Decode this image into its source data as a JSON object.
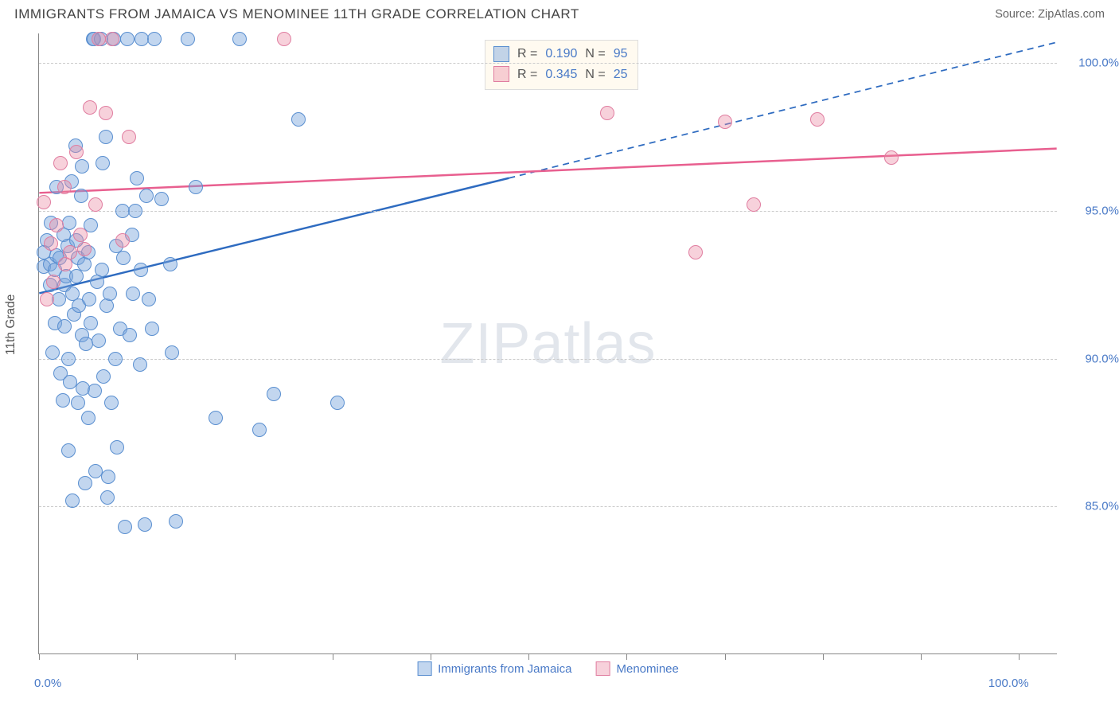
{
  "title": "IMMIGRANTS FROM JAMAICA VS MENOMINEE 11TH GRADE CORRELATION CHART",
  "source": "Source: ZipAtlas.com",
  "ylabel": "11th Grade",
  "watermark_zip": "ZIP",
  "watermark_atlas": "atlas",
  "chart": {
    "type": "scatter",
    "xlim": [
      0,
      104
    ],
    "ylim": [
      80,
      101
    ],
    "ytick_values": [
      85,
      90,
      95,
      100
    ],
    "ytick_labels": [
      "85.0%",
      "90.0%",
      "95.0%",
      "100.0%"
    ],
    "xtick_major": [
      0,
      100
    ],
    "xtick_labels": [
      "0.0%",
      "100.0%"
    ],
    "xtick_minor": [
      10,
      20,
      30,
      40,
      50,
      60,
      70,
      80,
      90
    ],
    "grid_color": "#cccccc",
    "axis_color": "#888888",
    "background_color": "#ffffff",
    "point_radius": 9,
    "series": [
      {
        "name": "Immigrants from Jamaica",
        "fill": "rgba(120,165,220,0.45)",
        "stroke": "#5a8fd0",
        "line_color": "#2e6bc0",
        "line_width": 2.5,
        "R": "0.190",
        "N": "95",
        "trend_solid": {
          "x1": 0,
          "y1": 92.2,
          "x2": 48,
          "y2": 96.1
        },
        "trend_dashed": {
          "x1": 48,
          "y1": 96.1,
          "x2": 104,
          "y2": 100.7
        },
        "points": [
          [
            0.5,
            93.6
          ],
          [
            0.5,
            93.1
          ],
          [
            0.8,
            94.0
          ],
          [
            1.1,
            93.2
          ],
          [
            1.2,
            94.6
          ],
          [
            1.1,
            92.5
          ],
          [
            1.4,
            90.2
          ],
          [
            1.6,
            91.2
          ],
          [
            1.6,
            93.0
          ],
          [
            1.8,
            93.5
          ],
          [
            1.8,
            95.8
          ],
          [
            2.0,
            92.0
          ],
          [
            2.1,
            93.4
          ],
          [
            2.2,
            89.5
          ],
          [
            2.4,
            88.6
          ],
          [
            2.5,
            94.2
          ],
          [
            2.6,
            92.5
          ],
          [
            2.6,
            91.1
          ],
          [
            2.8,
            92.8
          ],
          [
            2.9,
            93.8
          ],
          [
            3.0,
            90.0
          ],
          [
            3.0,
            86.9
          ],
          [
            3.1,
            94.6
          ],
          [
            3.2,
            89.2
          ],
          [
            3.3,
            96.0
          ],
          [
            3.4,
            92.2
          ],
          [
            3.4,
            85.2
          ],
          [
            3.6,
            91.5
          ],
          [
            3.7,
            97.2
          ],
          [
            3.8,
            92.8
          ],
          [
            3.8,
            94.0
          ],
          [
            4.0,
            93.4
          ],
          [
            4.0,
            88.5
          ],
          [
            4.1,
            91.8
          ],
          [
            4.3,
            95.5
          ],
          [
            4.4,
            90.8
          ],
          [
            4.4,
            96.5
          ],
          [
            4.5,
            89.0
          ],
          [
            4.6,
            93.2
          ],
          [
            4.7,
            85.8
          ],
          [
            4.8,
            90.5
          ],
          [
            5.0,
            93.6
          ],
          [
            5.0,
            88.0
          ],
          [
            5.1,
            92.0
          ],
          [
            5.3,
            91.2
          ],
          [
            5.3,
            94.5
          ],
          [
            5.5,
            100.8
          ],
          [
            5.6,
            100.8
          ],
          [
            5.7,
            88.9
          ],
          [
            5.8,
            86.2
          ],
          [
            5.9,
            92.6
          ],
          [
            6.1,
            90.6
          ],
          [
            6.3,
            100.8
          ],
          [
            6.4,
            93.0
          ],
          [
            6.5,
            96.6
          ],
          [
            6.6,
            89.4
          ],
          [
            6.8,
            97.5
          ],
          [
            6.9,
            91.8
          ],
          [
            7.0,
            85.3
          ],
          [
            7.1,
            86.0
          ],
          [
            7.2,
            92.2
          ],
          [
            7.4,
            88.5
          ],
          [
            7.6,
            100.8
          ],
          [
            7.8,
            90.0
          ],
          [
            7.9,
            93.8
          ],
          [
            8.0,
            87.0
          ],
          [
            8.3,
            91.0
          ],
          [
            8.5,
            95.0
          ],
          [
            8.6,
            93.4
          ],
          [
            8.8,
            84.3
          ],
          [
            9.0,
            100.8
          ],
          [
            9.3,
            90.8
          ],
          [
            9.5,
            94.2
          ],
          [
            9.6,
            92.2
          ],
          [
            9.8,
            95.0
          ],
          [
            10.0,
            96.1
          ],
          [
            10.3,
            89.8
          ],
          [
            10.4,
            93.0
          ],
          [
            10.5,
            100.8
          ],
          [
            10.8,
            84.4
          ],
          [
            11.0,
            95.5
          ],
          [
            11.2,
            92.0
          ],
          [
            11.5,
            91.0
          ],
          [
            11.8,
            100.8
          ],
          [
            12.5,
            95.4
          ],
          [
            13.4,
            93.2
          ],
          [
            13.6,
            90.2
          ],
          [
            14.0,
            84.5
          ],
          [
            15.2,
            100.8
          ],
          [
            16.0,
            95.8
          ],
          [
            18.0,
            88.0
          ],
          [
            20.5,
            100.8
          ],
          [
            22.5,
            87.6
          ],
          [
            24.0,
            88.8
          ],
          [
            26.5,
            98.1
          ],
          [
            30.5,
            88.5
          ]
        ]
      },
      {
        "name": "Menominee",
        "fill": "rgba(235,140,165,0.40)",
        "stroke": "#e07da0",
        "line_color": "#e85f8f",
        "line_width": 2.5,
        "R": "0.345",
        "N": "25",
        "trend_solid": {
          "x1": 0,
          "y1": 95.6,
          "x2": 104,
          "y2": 97.1
        },
        "trend_dashed": null,
        "points": [
          [
            0.5,
            95.3
          ],
          [
            0.8,
            92.0
          ],
          [
            1.2,
            93.9
          ],
          [
            1.5,
            92.6
          ],
          [
            1.8,
            94.5
          ],
          [
            2.2,
            96.6
          ],
          [
            2.6,
            95.8
          ],
          [
            2.7,
            93.2
          ],
          [
            3.2,
            93.6
          ],
          [
            3.8,
            97.0
          ],
          [
            4.2,
            94.2
          ],
          [
            4.6,
            93.7
          ],
          [
            5.2,
            98.5
          ],
          [
            5.8,
            95.2
          ],
          [
            6.1,
            100.8
          ],
          [
            6.8,
            98.3
          ],
          [
            7.5,
            100.8
          ],
          [
            8.5,
            94.0
          ],
          [
            9.2,
            97.5
          ],
          [
            25.0,
            100.8
          ],
          [
            58.0,
            98.3
          ],
          [
            67.0,
            93.6
          ],
          [
            70.0,
            98.0
          ],
          [
            73.0,
            95.2
          ],
          [
            79.5,
            98.1
          ],
          [
            87.0,
            96.8
          ]
        ]
      }
    ]
  },
  "legend_top": {
    "r_label": "R  =",
    "n_label": "N  ="
  },
  "legend_bottom_series1": "Immigrants from Jamaica",
  "legend_bottom_series2": "Menominee"
}
